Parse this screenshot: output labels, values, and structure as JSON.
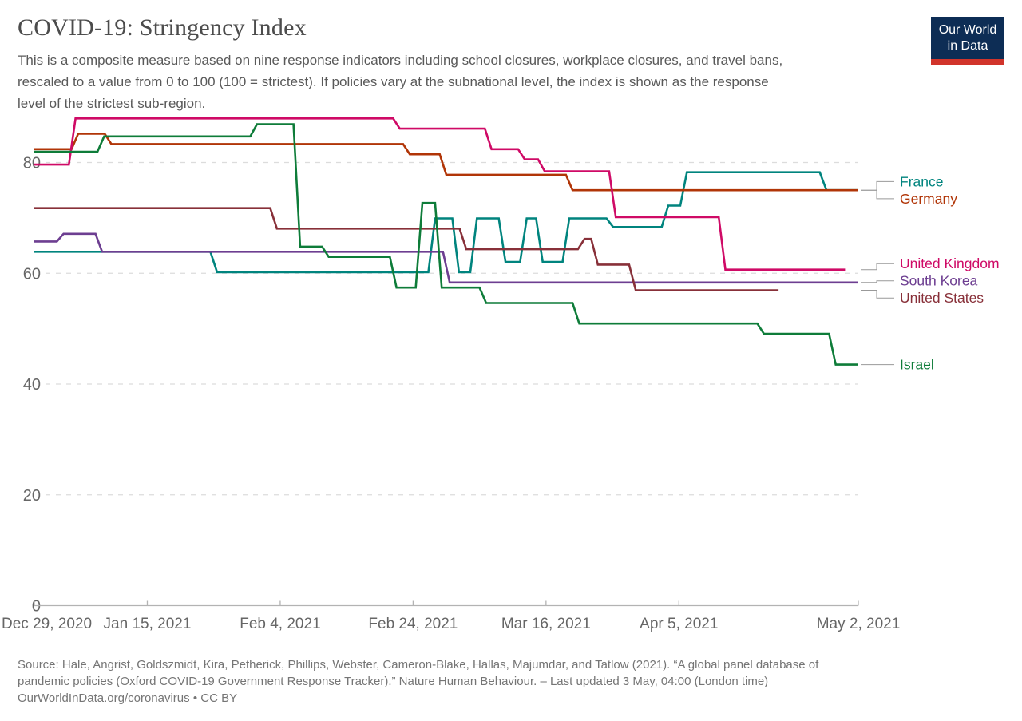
{
  "header": {
    "title": "COVID-19: Stringency Index",
    "subtitle_lines": [
      "This is a composite measure based on nine response indicators including school closures, workplace closures, and travel bans,",
      "rescaled to a value from 0 to 100 (100 = strictest). If policies vary at the subnational level, the index is shown as the response",
      "level of the strictest sub-region."
    ],
    "logo": {
      "line1": "Our World",
      "line2": "in Data",
      "bg_color": "#0d2d55",
      "bar_color": "#d1342b"
    }
  },
  "chart_data": {
    "type": "line",
    "title": "COVID-19: Stringency Index",
    "ylabel": "",
    "xlabel": "",
    "ylim": [
      0,
      90
    ],
    "grid": true,
    "legend_position": "right-entity-labels",
    "style": {
      "grid_color": "#dcdcdc",
      "axis_color": "#b3b3b3",
      "tick_label_color": "#666666",
      "connector_color": "#999999"
    },
    "y_axis": {
      "ticks": [
        0,
        20,
        40,
        60,
        80
      ]
    },
    "x_axis": {
      "unit": "date",
      "total_days": 124,
      "ticks": [
        {
          "label": "Dec 29, 2020",
          "day": 0
        },
        {
          "label": "Jan 15, 2021",
          "day": 17
        },
        {
          "label": "Feb 4, 2021",
          "day": 37
        },
        {
          "label": "Feb 24, 2021",
          "day": 57
        },
        {
          "label": "Mar 16, 2021",
          "day": 77
        },
        {
          "label": "Apr 5, 2021",
          "day": 97
        },
        {
          "label": "May 2, 2021",
          "day": 124
        }
      ]
    },
    "series": [
      {
        "name": "France",
        "color": "#00847E",
        "points": [
          [
            0,
            63.89
          ],
          [
            27.5,
            60.19
          ],
          [
            60.3,
            69.91
          ],
          [
            63.9,
            60.19
          ],
          [
            66.6,
            69.91
          ],
          [
            70.9,
            62.04
          ],
          [
            74.1,
            69.91
          ],
          [
            76.5,
            62.04
          ],
          [
            80.5,
            69.91
          ],
          [
            87.1,
            68.35
          ],
          [
            95.4,
            72.22
          ],
          [
            98.2,
            78.24
          ],
          [
            119.2,
            75.0
          ],
          [
            124,
            75.0
          ]
        ]
      },
      {
        "name": "Germany",
        "color": "#B13507",
        "points": [
          [
            0,
            82.41
          ],
          [
            6.6,
            85.19
          ],
          [
            11.6,
            83.33
          ],
          [
            56.5,
            81.48
          ],
          [
            62,
            77.78
          ],
          [
            81,
            75.0
          ],
          [
            124,
            75.0
          ]
        ]
      },
      {
        "name": "United Kingdom",
        "color": "#CF0A66",
        "points": [
          [
            0,
            79.63
          ],
          [
            6.2,
            87.96
          ],
          [
            55,
            86.11
          ],
          [
            68.8,
            82.41
          ],
          [
            73.8,
            80.56
          ],
          [
            76.8,
            78.41
          ],
          [
            87.5,
            70.14
          ],
          [
            104,
            60.65
          ],
          [
            122,
            60.65
          ]
        ]
      },
      {
        "name": "South Korea",
        "color": "#6D3E91",
        "points": [
          [
            0,
            65.74
          ],
          [
            4.4,
            67.13
          ],
          [
            10.2,
            63.89
          ],
          [
            62.5,
            58.33
          ],
          [
            124,
            58.33
          ]
        ]
      },
      {
        "name": "United States",
        "color": "#883039",
        "points": [
          [
            0,
            71.76
          ],
          [
            36.5,
            68.06
          ],
          [
            65,
            64.35
          ],
          [
            82.8,
            66.2
          ],
          [
            84.8,
            61.57
          ],
          [
            90.5,
            56.94
          ],
          [
            112,
            56.94
          ]
        ]
      },
      {
        "name": "Israel",
        "color": "#0E7C39",
        "points": [
          [
            0,
            81.94
          ],
          [
            10.5,
            84.72
          ],
          [
            33.5,
            86.9
          ],
          [
            40,
            64.81
          ],
          [
            44.3,
            62.96
          ],
          [
            54.5,
            57.41
          ],
          [
            58.4,
            72.69
          ],
          [
            61.3,
            57.41
          ],
          [
            68,
            54.63
          ],
          [
            82,
            50.93
          ],
          [
            109.8,
            49.07
          ],
          [
            120.6,
            43.52
          ],
          [
            124,
            43.52
          ]
        ]
      }
    ]
  },
  "footer": {
    "source_lines": [
      "Source: Hale, Angrist, Goldszmidt, Kira, Petherick, Phillips, Webster, Cameron-Blake, Hallas, Majumdar, and Tatlow (2021). “A global panel database of",
      "pandemic policies (Oxford COVID-19 Government Response Tracker).” Nature Human Behaviour. – Last updated 3 May, 04:00 (London time)"
    ],
    "cc_line": "OurWorldInData.org/coronavirus • CC BY"
  }
}
